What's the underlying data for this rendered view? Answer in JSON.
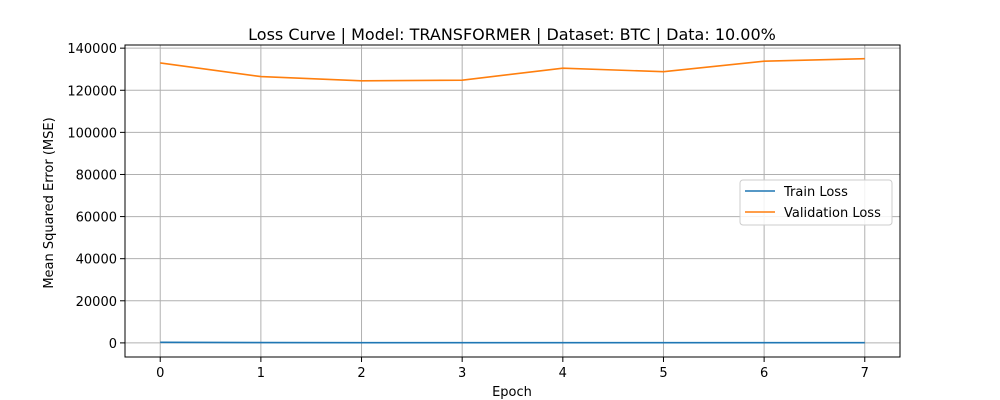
{
  "chart_data": {
    "type": "line",
    "title": "Loss Curve | Model: TRANSFORMER | Dataset: BTC | Data: 10.00%",
    "xlabel": "Epoch",
    "ylabel": "Mean Squared Error (MSE)",
    "x": [
      0,
      1,
      2,
      3,
      4,
      5,
      6,
      7
    ],
    "xlim": [
      -0.35,
      7.35
    ],
    "ylim": [
      -6700,
      141500
    ],
    "xticks": [
      0,
      1,
      2,
      3,
      4,
      5,
      6,
      7
    ],
    "yticks": [
      0,
      20000,
      40000,
      60000,
      80000,
      100000,
      120000,
      140000
    ],
    "grid": true,
    "legend_position": "center-right",
    "series": [
      {
        "name": "Train Loss",
        "color": "#1f77b4",
        "values": [
          300,
          150,
          100,
          90,
          80,
          75,
          70,
          70
        ]
      },
      {
        "name": "Validation Loss",
        "color": "#ff7f0e",
        "values": [
          133000,
          126500,
          124500,
          124800,
          130500,
          128800,
          133800,
          135000
        ]
      }
    ]
  }
}
